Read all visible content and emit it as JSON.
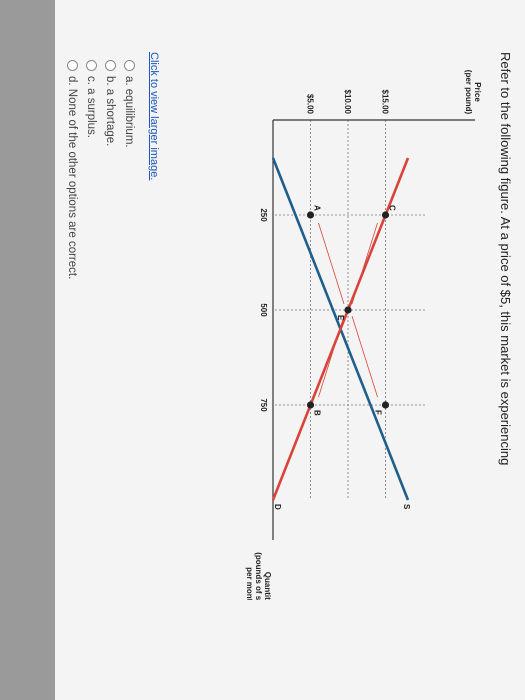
{
  "question": "Refer to the following figure. At a price of $5, this market is experiencing",
  "link_text": "Click to view larger image.",
  "options": [
    {
      "label": "a. equilibrium."
    },
    {
      "label": "b. a shortage."
    },
    {
      "label": "c. a surplus."
    },
    {
      "label": "d. None of the other options are correct."
    }
  ],
  "chart_data": {
    "type": "line",
    "y_axis_title": [
      "Price",
      "(per pound)"
    ],
    "x_axis_title": [
      "Quantity",
      "(pounds of salmon",
      "per month)"
    ],
    "x_ticks": [
      "250",
      "500",
      "750"
    ],
    "y_ticks": [
      "$5.00",
      "$10.00",
      "$15.00"
    ],
    "xlim": [
      0,
      1000
    ],
    "ylim": [
      0,
      20
    ],
    "series": [
      {
        "name": "S",
        "color": "#1f5f8b",
        "points": [
          [
            100,
            0
          ],
          [
            1000,
            18
          ]
        ]
      },
      {
        "name": "D",
        "color": "#d9443a",
        "points": [
          [
            100,
            18
          ],
          [
            1000,
            0
          ]
        ]
      }
    ],
    "markers": [
      {
        "label": "A",
        "x": 250,
        "y": 5
      },
      {
        "label": "B",
        "x": 750,
        "y": 5
      },
      {
        "label": "C",
        "x": 250,
        "y": 15
      },
      {
        "label": "E",
        "x": 500,
        "y": 10
      },
      {
        "label": "F",
        "x": 750,
        "y": 15
      }
    ]
  },
  "colors": {
    "link": "#1a55c0",
    "supply": "#1f5f8b",
    "demand": "#d9443a"
  }
}
